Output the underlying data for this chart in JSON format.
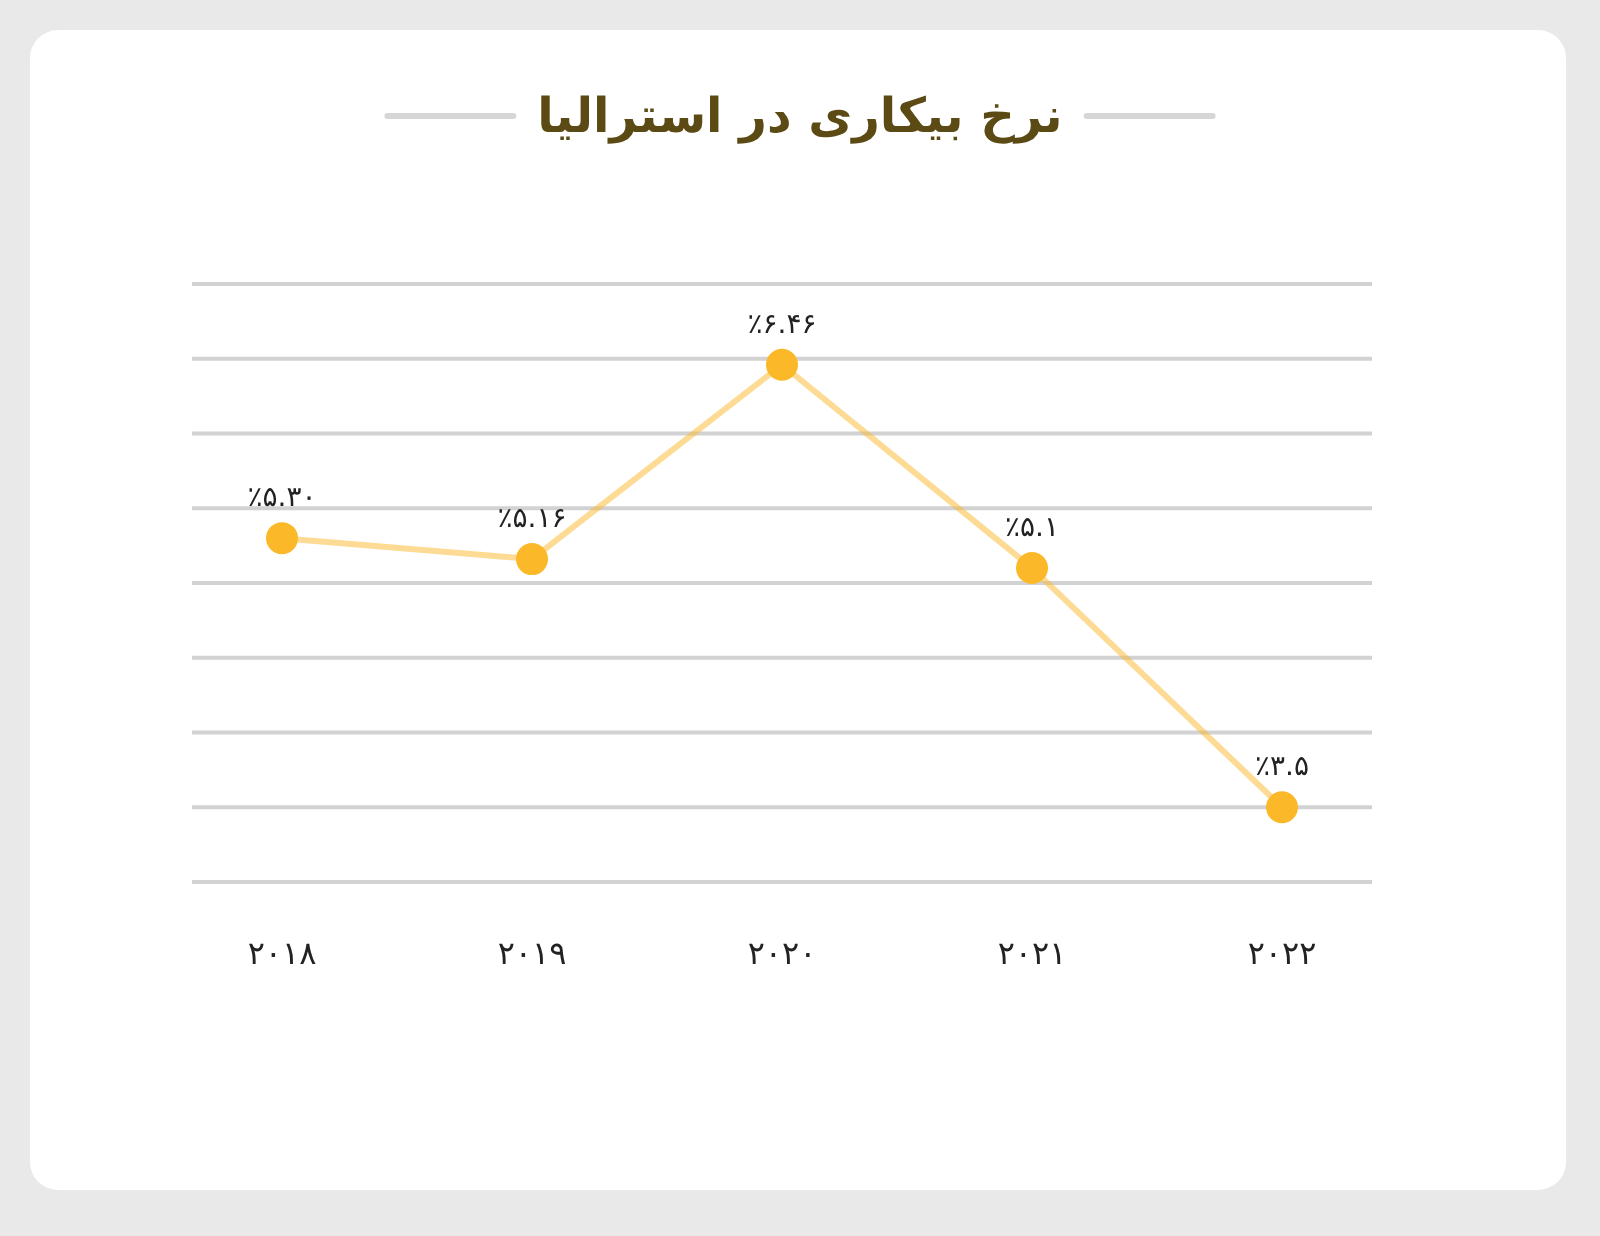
{
  "chart_data": {
    "type": "line",
    "title": "نرخ بیکاری در استرالیا",
    "categories": [
      "۲۰۱۸",
      "۲۰۱۹",
      "۲۰۲۰",
      "۲۰۲۱",
      "۲۰۲۲"
    ],
    "series": [
      {
        "color": "#fbb829",
        "values": [
          5.3,
          5.16,
          6.46,
          5.1,
          3.5
        ],
        "value_labels": [
          "٪۵.۳۰",
          "٪۵.۱۶",
          "٪۶.۴۶",
          "٪۵.۱",
          "٪۳.۵"
        ]
      }
    ],
    "ylim": [
      3,
      7
    ],
    "yticks": [
      {
        "value": 3,
        "label": null
      },
      {
        "value": 3.5,
        "label": null
      },
      {
        "value": 4,
        "label": null
      },
      {
        "value": 4.5,
        "label": null
      },
      {
        "value": 5,
        "label": null
      },
      {
        "value": 5.5,
        "label": null
      },
      {
        "value": 6,
        "label": null
      },
      {
        "value": 6.5,
        "label": null
      },
      {
        "value": 7,
        "label": null
      }
    ],
    "grid": "y",
    "tick_labels": "x",
    "marker": "circle",
    "line_style": "solid"
  }
}
